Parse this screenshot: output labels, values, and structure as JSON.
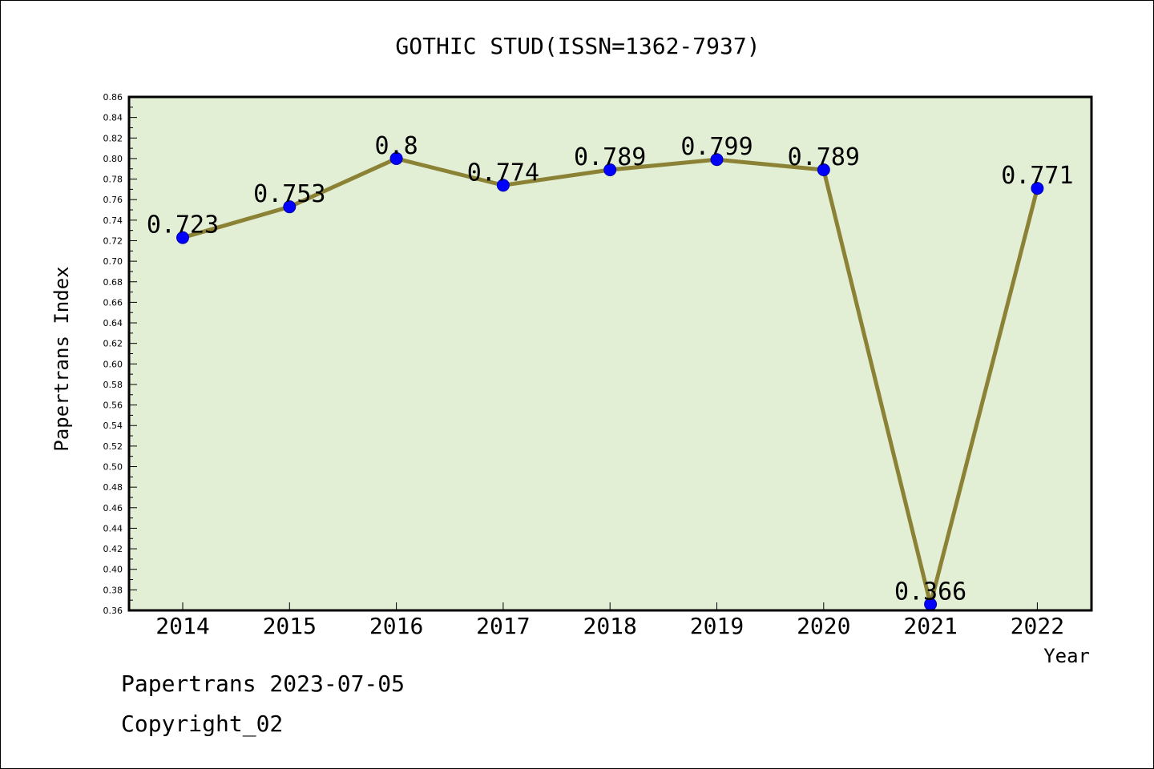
{
  "chart_data": {
    "type": "line",
    "title": "GOTHIC STUD(ISSN=1362-7937)",
    "xlabel": "Year",
    "ylabel": "Papertrans Index",
    "categories": [
      "2014",
      "2015",
      "2016",
      "2017",
      "2018",
      "2019",
      "2020",
      "2021",
      "2022"
    ],
    "values": [
      0.723,
      0.753,
      0.8,
      0.774,
      0.789,
      0.799,
      0.789,
      0.366,
      0.771
    ],
    "value_labels": [
      "0.723",
      "0.753",
      "0.8",
      "0.774",
      "0.789",
      "0.799",
      "0.789",
      "0.366",
      "0.771"
    ],
    "ylim": [
      0.36,
      0.86
    ],
    "ytick_step": 0.02,
    "grid": false,
    "colors": {
      "plot_background": "#e2efd5",
      "line": "#8b8235",
      "marker": "#0000ff"
    }
  },
  "footer": {
    "line1": "Papertrans 2023-07-05",
    "line2": "Copyright_02"
  }
}
